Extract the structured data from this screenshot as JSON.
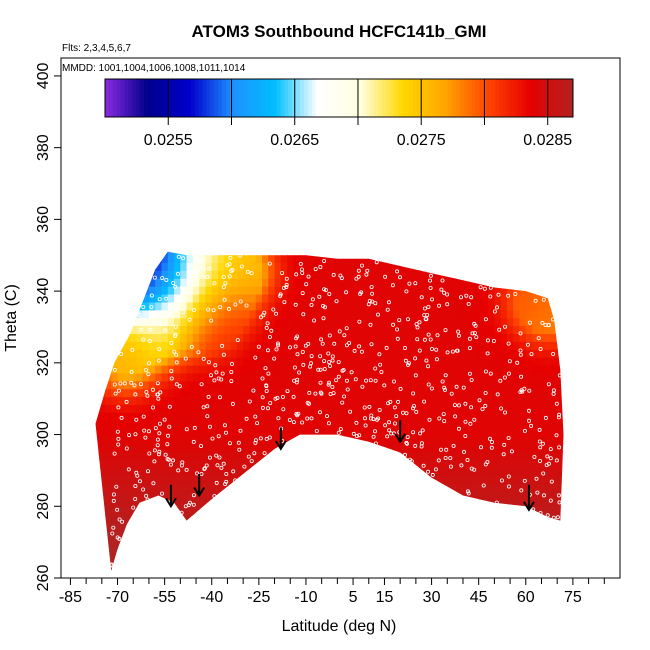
{
  "chart_data": {
    "type": "heatmap",
    "title": "ATOM3 Southbound HCFC141b_GMI",
    "flights_note": "Flts: 2,3,4,5,6,7",
    "dates_note": "MMDD: 1001,1004,1006,1008,1011,1014",
    "xlabel": "Latitude (deg N)",
    "ylabel": "Theta (C)",
    "xlim": [
      -88,
      90
    ],
    "ylim": [
      260,
      405
    ],
    "x_ticks": [
      -85,
      -70,
      -55,
      -40,
      -25,
      -10,
      5,
      15,
      30,
      45,
      60,
      75
    ],
    "x_minor_ticks": [
      -80,
      -75,
      -65,
      -60,
      -50,
      -45,
      -35,
      -30,
      -20,
      -15,
      -5,
      0,
      10,
      20,
      25,
      35,
      40,
      50,
      55,
      65,
      70,
      80,
      85
    ],
    "y_ticks": [
      260,
      280,
      300,
      320,
      340,
      360,
      380,
      400
    ],
    "colorbar": {
      "range": [
        0.025,
        0.0287
      ],
      "tick_values": [
        0.0255,
        0.0265,
        0.0275,
        0.0285
      ],
      "tick_labels": [
        "0.0255",
        "0.0265",
        "0.0275",
        "0.0285"
      ],
      "colors": [
        "#8a2be2",
        "#00008b",
        "#0000cd",
        "#1e90ff",
        "#00bfff",
        "#ffffff",
        "#ffffe0",
        "#ffd700",
        "#ffa500",
        "#ff4500",
        "#e60000",
        "#b22222"
      ]
    },
    "domain_bottom": [
      [
        -72,
        262
      ],
      [
        -70,
        268
      ],
      [
        -67,
        275
      ],
      [
        -63,
        281
      ],
      [
        -57,
        283
      ],
      [
        -52,
        281
      ],
      [
        -48,
        276
      ],
      [
        -40,
        282
      ],
      [
        -30,
        289
      ],
      [
        -20,
        296
      ],
      [
        -12,
        300
      ],
      [
        0,
        300
      ],
      [
        10,
        298
      ],
      [
        20,
        295
      ],
      [
        30,
        288
      ],
      [
        40,
        283
      ],
      [
        50,
        281
      ],
      [
        60,
        280
      ],
      [
        67,
        277
      ],
      [
        71,
        276
      ]
    ],
    "domain_top": [
      [
        -77,
        303
      ],
      [
        -74,
        312
      ],
      [
        -71,
        320
      ],
      [
        -66,
        328
      ],
      [
        -62,
        337
      ],
      [
        -58,
        346
      ],
      [
        -54,
        351
      ],
      [
        -48,
        350
      ],
      [
        -40,
        350
      ],
      [
        -30,
        350
      ],
      [
        -20,
        350
      ],
      [
        -10,
        350
      ],
      [
        0,
        349
      ],
      [
        10,
        349
      ],
      [
        20,
        347
      ],
      [
        30,
        345
      ],
      [
        40,
        343
      ],
      [
        50,
        341
      ],
      [
        60,
        340
      ],
      [
        67,
        338
      ],
      [
        69,
        332
      ],
      [
        71,
        318
      ],
      [
        72,
        300
      ]
    ],
    "fields": {
      "background": 0.0284,
      "blobs": [
        {
          "lat": -64,
          "theta": 343,
          "value": 0.0258
        },
        {
          "lat": -57,
          "theta": 346,
          "value": 0.0252
        },
        {
          "lat": -52,
          "theta": 338,
          "value": 0.0264
        },
        {
          "lat": -47,
          "theta": 346,
          "value": 0.0268
        },
        {
          "lat": -38,
          "theta": 346,
          "value": 0.0272
        },
        {
          "lat": -30,
          "theta": 346,
          "value": 0.0276
        },
        {
          "lat": -68,
          "theta": 320,
          "value": 0.0276
        },
        {
          "lat": -58,
          "theta": 328,
          "value": 0.0273
        },
        {
          "lat": -45,
          "theta": 335,
          "value": 0.0276
        },
        {
          "lat": -35,
          "theta": 336,
          "value": 0.0281
        },
        {
          "lat": -40,
          "theta": 328,
          "value": 0.0282
        },
        {
          "lat": 62,
          "theta": 338,
          "value": 0.028
        },
        {
          "lat": 68,
          "theta": 334,
          "value": 0.0278
        }
      ]
    },
    "arrows": [
      {
        "lat": -53,
        "theta_top": 286,
        "theta_tip": 280
      },
      {
        "lat": -44,
        "theta_top": 289,
        "theta_tip": 283
      },
      {
        "lat": -18,
        "theta_top": 302,
        "theta_tip": 296
      },
      {
        "lat": 20,
        "theta_top": 304,
        "theta_tip": 298
      },
      {
        "lat": 61,
        "theta_top": 286,
        "theta_tip": 279
      }
    ],
    "samples_per_flight_leg": 700
  }
}
